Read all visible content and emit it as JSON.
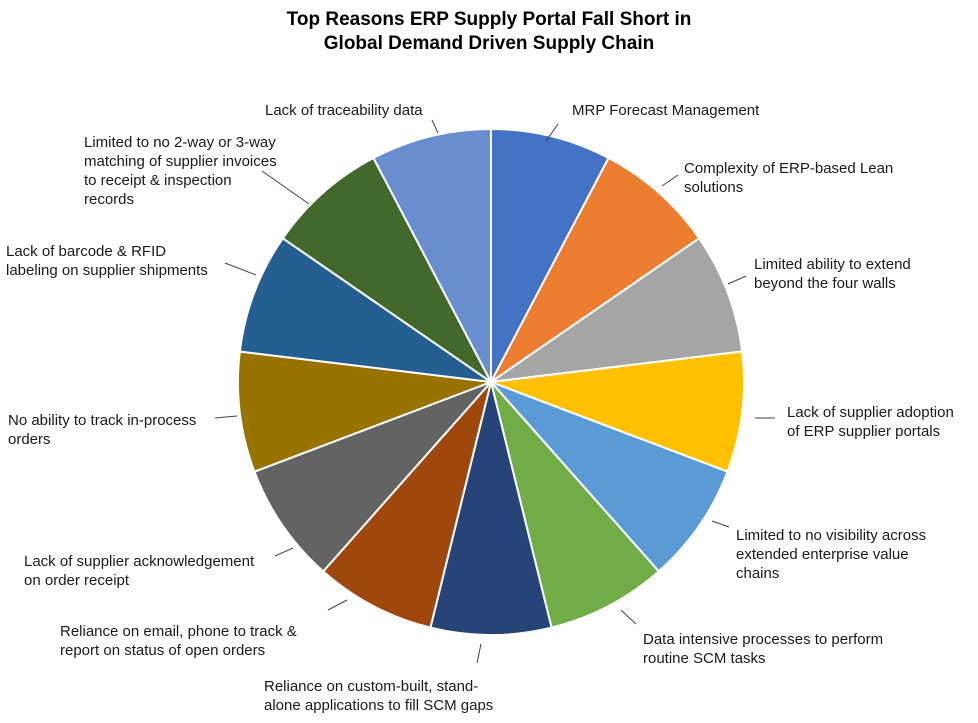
{
  "chart_data": {
    "type": "pie",
    "title_lines": [
      "Top Reasons ERP Supply Portal Fall Short in",
      "Global Demand Driven Supply Chain"
    ],
    "legend": "none",
    "slices": [
      {
        "label": "MRP Forecast Management",
        "value": 1,
        "color": "#4472C4"
      },
      {
        "label": "Complexity of ERP-based Lean solutions",
        "value": 1,
        "color": "#ED7D31"
      },
      {
        "label": "Limited ability to extend beyond the four walls",
        "value": 1,
        "color": "#A5A5A5"
      },
      {
        "label": "Lack of supplier adoption of ERP supplier portals",
        "value": 1,
        "color": "#FFC000"
      },
      {
        "label": "Limited to no visibility across extended enterprise value chains",
        "value": 1,
        "color": "#5B9BD5"
      },
      {
        "label": "Data intensive processes to perform routine SCM tasks",
        "value": 1,
        "color": "#70AD47"
      },
      {
        "label": "Reliance on custom-built, stand-alone applications to fill SCM gaps",
        "value": 1,
        "color": "#264478"
      },
      {
        "label": "Reliance on email, phone to track & report on  status of open orders",
        "value": 1,
        "color": "#9E480E"
      },
      {
        "label": "Lack of supplier acknowledgement on order receipt",
        "value": 1,
        "color": "#636363"
      },
      {
        "label": "No ability to track in-process orders",
        "value": 1,
        "color": "#997300"
      },
      {
        "label": "Lack of barcode & RFID labeling on supplier shipments",
        "value": 1,
        "color": "#255E91"
      },
      {
        "label": "Limited to no 2-way or 3-way matching of supplier invoices to receipt & inspection records",
        "value": 1,
        "color": "#43682B"
      },
      {
        "label": "Lack of traceability data",
        "value": 1,
        "color": "#698ED0"
      }
    ],
    "label_lines": [
      [
        "MRP Forecast Management"
      ],
      [
        "Complexity of ERP-based Lean",
        "solutions"
      ],
      [
        "Limited ability to extend",
        "beyond the four walls"
      ],
      [
        "Lack of supplier adoption",
        "of ERP supplier portals"
      ],
      [
        "Limited to no visibility across",
        "extended enterprise value",
        "chains"
      ],
      [
        "Data intensive processes to perform",
        "routine SCM tasks"
      ],
      [
        "Reliance on custom-built, stand-",
        "alone applications to fill SCM gaps"
      ],
      [
        "Reliance on email, phone to track &",
        "report on  status of open orders"
      ],
      [
        "Lack of supplier acknowledgement",
        "on order receipt"
      ],
      [
        "No ability to track in-process",
        "orders"
      ],
      [
        "Lack of barcode & RFID",
        "labeling on supplier shipments"
      ],
      [
        "Limited to no 2-way or 3-way",
        "matching of supplier invoices",
        "to receipt & inspection",
        "records"
      ],
      [
        "Lack of traceability data"
      ]
    ]
  }
}
